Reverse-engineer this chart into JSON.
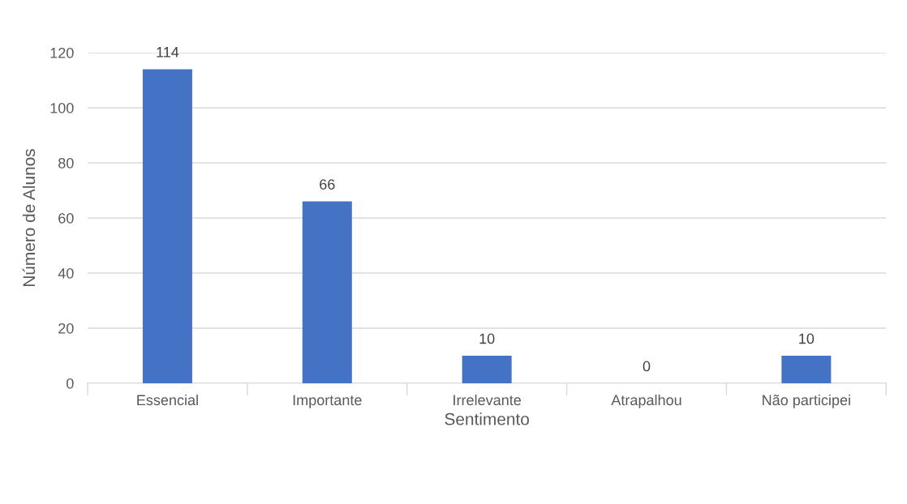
{
  "chart_data": {
    "type": "bar",
    "xlabel": "Sentimento",
    "ylabel": "Número de Alunos",
    "categories": [
      "Essencial",
      "Importante",
      "Irrelevante",
      "Atrapalhou",
      "Não participei"
    ],
    "values": [
      114,
      66,
      10,
      0,
      10
    ],
    "color": "#4472c4",
    "ylim": [
      0,
      120
    ],
    "yticks": [
      0,
      20,
      40,
      60,
      80,
      100,
      120
    ],
    "grid": "y",
    "data_labels": true
  }
}
